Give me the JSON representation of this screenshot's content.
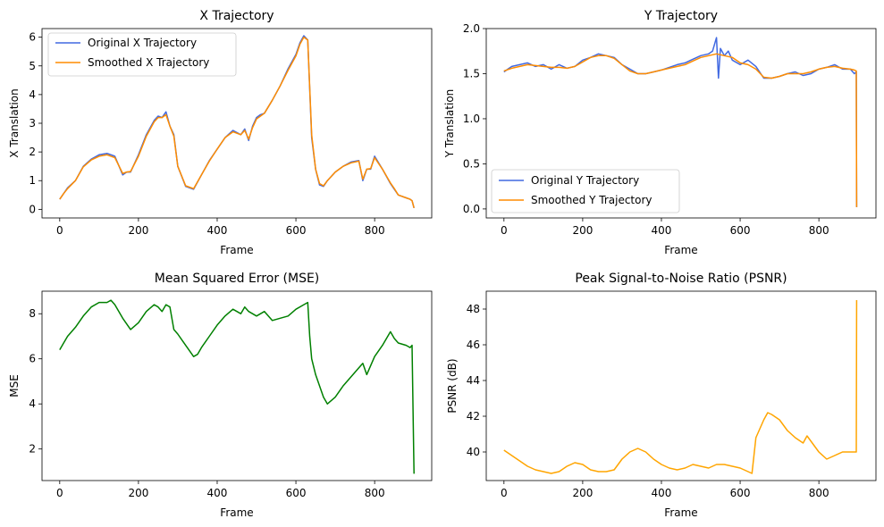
{
  "chart_data": [
    {
      "type": "line",
      "title": "X Trajectory",
      "xlabel": "Frame",
      "ylabel": "X Translation",
      "xlim": [
        -45,
        945
      ],
      "ylim": [
        -0.3,
        6.3
      ],
      "xticks": [
        0,
        200,
        400,
        600,
        800
      ],
      "yticks": [
        0,
        1,
        2,
        3,
        4,
        5,
        6
      ],
      "legend": "upper-left",
      "series": [
        {
          "name": "Original X Trajectory",
          "color": "#4169e1",
          "x": [
            0,
            10,
            20,
            40,
            60,
            80,
            100,
            120,
            140,
            160,
            170,
            180,
            200,
            220,
            240,
            250,
            260,
            270,
            280,
            290,
            300,
            320,
            340,
            360,
            380,
            400,
            420,
            440,
            460,
            470,
            480,
            490,
            500,
            510,
            520,
            540,
            560,
            580,
            600,
            610,
            620,
            630,
            640,
            650,
            660,
            670,
            680,
            700,
            720,
            740,
            760,
            770,
            780,
            790,
            800,
            820,
            840,
            850,
            860,
            880,
            890,
            895,
            900
          ],
          "y": [
            0.35,
            0.55,
            0.75,
            1.0,
            1.5,
            1.75,
            1.9,
            1.95,
            1.85,
            1.2,
            1.3,
            1.3,
            1.9,
            2.6,
            3.1,
            3.25,
            3.2,
            3.4,
            2.9,
            2.6,
            1.5,
            0.8,
            0.7,
            1.2,
            1.7,
            2.1,
            2.5,
            2.75,
            2.6,
            2.8,
            2.4,
            2.9,
            3.2,
            3.3,
            3.35,
            3.8,
            4.3,
            4.9,
            5.4,
            5.8,
            6.05,
            5.9,
            2.5,
            1.4,
            0.85,
            0.8,
            1.0,
            1.3,
            1.5,
            1.65,
            1.7,
            1.0,
            1.4,
            1.4,
            1.85,
            1.4,
            0.9,
            0.7,
            0.5,
            0.4,
            0.35,
            0.3,
            0.05
          ]
        },
        {
          "name": "Smoothed X Trajectory",
          "color": "#ff8c00",
          "x": [
            0,
            10,
            20,
            40,
            60,
            80,
            100,
            120,
            140,
            160,
            170,
            180,
            200,
            220,
            240,
            250,
            260,
            270,
            280,
            290,
            300,
            320,
            340,
            360,
            380,
            400,
            420,
            440,
            460,
            470,
            480,
            490,
            500,
            510,
            520,
            540,
            560,
            580,
            600,
            610,
            620,
            630,
            640,
            650,
            660,
            670,
            680,
            700,
            720,
            740,
            760,
            770,
            780,
            790,
            800,
            820,
            840,
            850,
            860,
            880,
            890,
            895,
            900
          ],
          "y": [
            0.35,
            0.55,
            0.72,
            1.0,
            1.48,
            1.72,
            1.85,
            1.9,
            1.8,
            1.25,
            1.3,
            1.32,
            1.85,
            2.55,
            3.05,
            3.2,
            3.2,
            3.3,
            2.9,
            2.55,
            1.5,
            0.82,
            0.72,
            1.2,
            1.68,
            2.1,
            2.5,
            2.7,
            2.6,
            2.75,
            2.45,
            2.85,
            3.15,
            3.25,
            3.35,
            3.8,
            4.3,
            4.85,
            5.35,
            5.75,
            6.0,
            5.9,
            2.6,
            1.4,
            0.9,
            0.82,
            1.0,
            1.3,
            1.5,
            1.62,
            1.68,
            1.05,
            1.4,
            1.42,
            1.8,
            1.4,
            0.92,
            0.72,
            0.5,
            0.4,
            0.35,
            0.3,
            0.05
          ]
        }
      ]
    },
    {
      "type": "line",
      "title": "Y Trajectory",
      "xlabel": "Frame",
      "ylabel": "Y Translation",
      "xlim": [
        -45,
        945
      ],
      "ylim": [
        -0.1,
        2.0
      ],
      "xticks": [
        0,
        200,
        400,
        600,
        800
      ],
      "yticks": [
        0.0,
        0.5,
        1.0,
        1.5,
        2.0
      ],
      "legend": "lower-left",
      "series": [
        {
          "name": "Original Y Trajectory",
          "color": "#4169e1",
          "x": [
            0,
            10,
            20,
            40,
            60,
            80,
            100,
            120,
            140,
            160,
            180,
            200,
            220,
            240,
            260,
            280,
            300,
            320,
            340,
            360,
            380,
            400,
            420,
            440,
            460,
            480,
            500,
            520,
            530,
            540,
            545,
            550,
            560,
            570,
            580,
            600,
            620,
            640,
            660,
            680,
            700,
            720,
            740,
            760,
            780,
            800,
            820,
            840,
            860,
            880,
            890,
            895,
            896
          ],
          "y": [
            1.52,
            1.55,
            1.58,
            1.6,
            1.62,
            1.58,
            1.6,
            1.55,
            1.6,
            1.56,
            1.58,
            1.65,
            1.68,
            1.72,
            1.7,
            1.68,
            1.6,
            1.55,
            1.5,
            1.5,
            1.52,
            1.54,
            1.57,
            1.6,
            1.62,
            1.66,
            1.7,
            1.72,
            1.75,
            1.9,
            1.45,
            1.78,
            1.7,
            1.75,
            1.65,
            1.6,
            1.65,
            1.58,
            1.45,
            1.45,
            1.47,
            1.5,
            1.52,
            1.48,
            1.5,
            1.55,
            1.57,
            1.6,
            1.55,
            1.55,
            1.5,
            1.52,
            0.02
          ]
        },
        {
          "name": "Smoothed Y Trajectory",
          "color": "#ff8c00",
          "x": [
            0,
            20,
            40,
            60,
            80,
            100,
            120,
            140,
            160,
            180,
            200,
            220,
            240,
            260,
            280,
            300,
            320,
            340,
            360,
            380,
            400,
            420,
            440,
            460,
            480,
            500,
            520,
            540,
            560,
            580,
            600,
            620,
            640,
            660,
            680,
            700,
            720,
            740,
            760,
            780,
            800,
            820,
            840,
            860,
            880,
            890,
            895,
            896
          ],
          "y": [
            1.53,
            1.56,
            1.58,
            1.6,
            1.59,
            1.58,
            1.57,
            1.57,
            1.56,
            1.58,
            1.63,
            1.68,
            1.7,
            1.7,
            1.67,
            1.6,
            1.53,
            1.5,
            1.5,
            1.52,
            1.54,
            1.56,
            1.58,
            1.6,
            1.64,
            1.68,
            1.7,
            1.72,
            1.7,
            1.68,
            1.62,
            1.6,
            1.55,
            1.46,
            1.45,
            1.47,
            1.5,
            1.5,
            1.5,
            1.52,
            1.55,
            1.57,
            1.58,
            1.56,
            1.55,
            1.54,
            1.53,
            0.02
          ]
        }
      ]
    },
    {
      "type": "line",
      "title": "Mean Squared Error (MSE)",
      "xlabel": "Frame",
      "ylabel": "MSE",
      "xlim": [
        -45,
        945
      ],
      "ylim": [
        0.6,
        9.0
      ],
      "xticks": [
        0,
        200,
        400,
        600,
        800
      ],
      "yticks": [
        2,
        4,
        6,
        8
      ],
      "series": [
        {
          "name": "",
          "color": "#008000",
          "x": [
            0,
            10,
            20,
            40,
            60,
            80,
            100,
            120,
            130,
            140,
            160,
            180,
            200,
            220,
            240,
            250,
            260,
            270,
            280,
            290,
            300,
            320,
            340,
            350,
            360,
            380,
            400,
            420,
            440,
            460,
            470,
            480,
            500,
            520,
            540,
            560,
            580,
            600,
            620,
            630,
            635,
            640,
            650,
            660,
            670,
            680,
            700,
            720,
            740,
            760,
            770,
            780,
            800,
            820,
            840,
            850,
            860,
            880,
            890,
            895,
            900
          ],
          "y": [
            6.4,
            6.7,
            7.0,
            7.4,
            7.9,
            8.3,
            8.5,
            8.5,
            8.6,
            8.4,
            7.8,
            7.3,
            7.6,
            8.1,
            8.4,
            8.3,
            8.1,
            8.4,
            8.3,
            7.3,
            7.1,
            6.6,
            6.1,
            6.2,
            6.5,
            7.0,
            7.5,
            7.9,
            8.2,
            8.0,
            8.3,
            8.1,
            7.9,
            8.1,
            7.7,
            7.8,
            7.9,
            8.2,
            8.4,
            8.5,
            7.0,
            6.0,
            5.3,
            4.8,
            4.3,
            4.0,
            4.3,
            4.8,
            5.2,
            5.6,
            5.8,
            5.3,
            6.1,
            6.6,
            7.2,
            6.9,
            6.7,
            6.6,
            6.5,
            6.6,
            0.9
          ]
        }
      ]
    },
    {
      "type": "line",
      "title": "Peak Signal-to-Noise Ratio (PSNR)",
      "xlabel": "Frame",
      "ylabel": "PSNR (dB)",
      "xlim": [
        -45,
        945
      ],
      "ylim": [
        38.4,
        49.0
      ],
      "xticks": [
        0,
        200,
        400,
        600,
        800
      ],
      "yticks": [
        40,
        42,
        44,
        46,
        48
      ],
      "series": [
        {
          "name": "",
          "color": "#ffa500",
          "x": [
            0,
            20,
            40,
            60,
            80,
            100,
            120,
            140,
            160,
            180,
            200,
            220,
            240,
            260,
            280,
            300,
            320,
            340,
            360,
            380,
            400,
            420,
            440,
            460,
            480,
            500,
            520,
            540,
            560,
            580,
            600,
            620,
            630,
            640,
            660,
            670,
            680,
            700,
            720,
            740,
            760,
            770,
            780,
            800,
            820,
            840,
            860,
            880,
            890,
            895,
            896
          ],
          "y": [
            40.1,
            39.8,
            39.5,
            39.2,
            39.0,
            38.9,
            38.8,
            38.9,
            39.2,
            39.4,
            39.3,
            39.0,
            38.9,
            38.9,
            39.0,
            39.6,
            40.0,
            40.2,
            40.0,
            39.6,
            39.3,
            39.1,
            39.0,
            39.1,
            39.3,
            39.2,
            39.1,
            39.3,
            39.3,
            39.2,
            39.1,
            38.9,
            38.8,
            40.8,
            41.8,
            42.2,
            42.1,
            41.8,
            41.2,
            40.8,
            40.5,
            40.9,
            40.6,
            40.0,
            39.6,
            39.8,
            40.0,
            40.0,
            40.0,
            40.0,
            48.5
          ]
        }
      ]
    }
  ]
}
